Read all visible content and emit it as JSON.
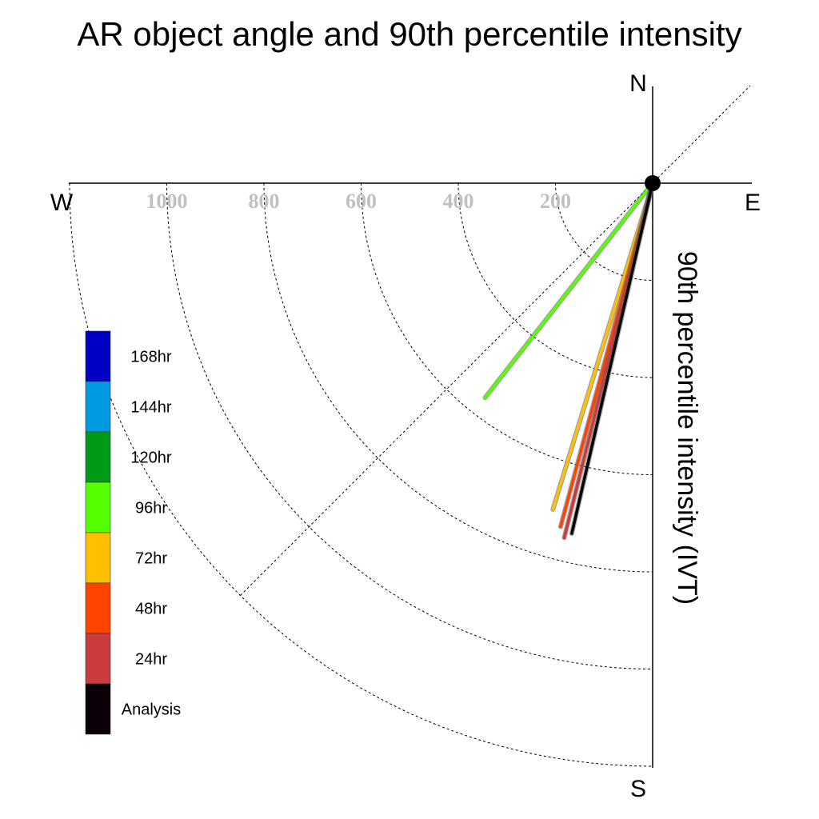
{
  "chart_data": {
    "type": "polar-vector",
    "title": "AR object angle and 90th percentile intensity",
    "ylabel": "90th percentile intensity (IVT)",
    "compass": {
      "north": "N",
      "south": "S",
      "east": "E",
      "west": "W"
    },
    "radial_ticks": [
      "200",
      "400",
      "600",
      "800",
      "1000"
    ],
    "radial_tick_values": [
      200,
      400,
      600,
      800,
      1000
    ],
    "radial_max": 1200,
    "series": [
      {
        "name": "96hr",
        "color": "#55ff00",
        "angle_deg": 218,
        "intensity": 560
      },
      {
        "name": "72hr",
        "color": "#ffc000",
        "angle_deg": 197,
        "intensity": 702
      },
      {
        "name": "48hr",
        "color": "#ff4400",
        "angle_deg": 195,
        "intensity": 732
      },
      {
        "name": "24hr",
        "color": "#cc3b3b",
        "angle_deg": 194,
        "intensity": 752
      },
      {
        "name": "Analysis",
        "color": "#000000",
        "angle_deg": 193,
        "intensity": 740
      }
    ],
    "legend": [
      {
        "label": "168hr",
        "color": "#0000c4"
      },
      {
        "label": "144hr",
        "color": "#009ae0"
      },
      {
        "label": "120hr",
        "color": "#009a16"
      },
      {
        "label": "96hr",
        "color": "#55ff00"
      },
      {
        "label": "72hr",
        "color": "#ffc000"
      },
      {
        "label": "48hr",
        "color": "#ff4400"
      },
      {
        "label": "24hr",
        "color": "#cc3b3b"
      },
      {
        "label": "Analysis",
        "color": "#0b0008"
      }
    ]
  }
}
